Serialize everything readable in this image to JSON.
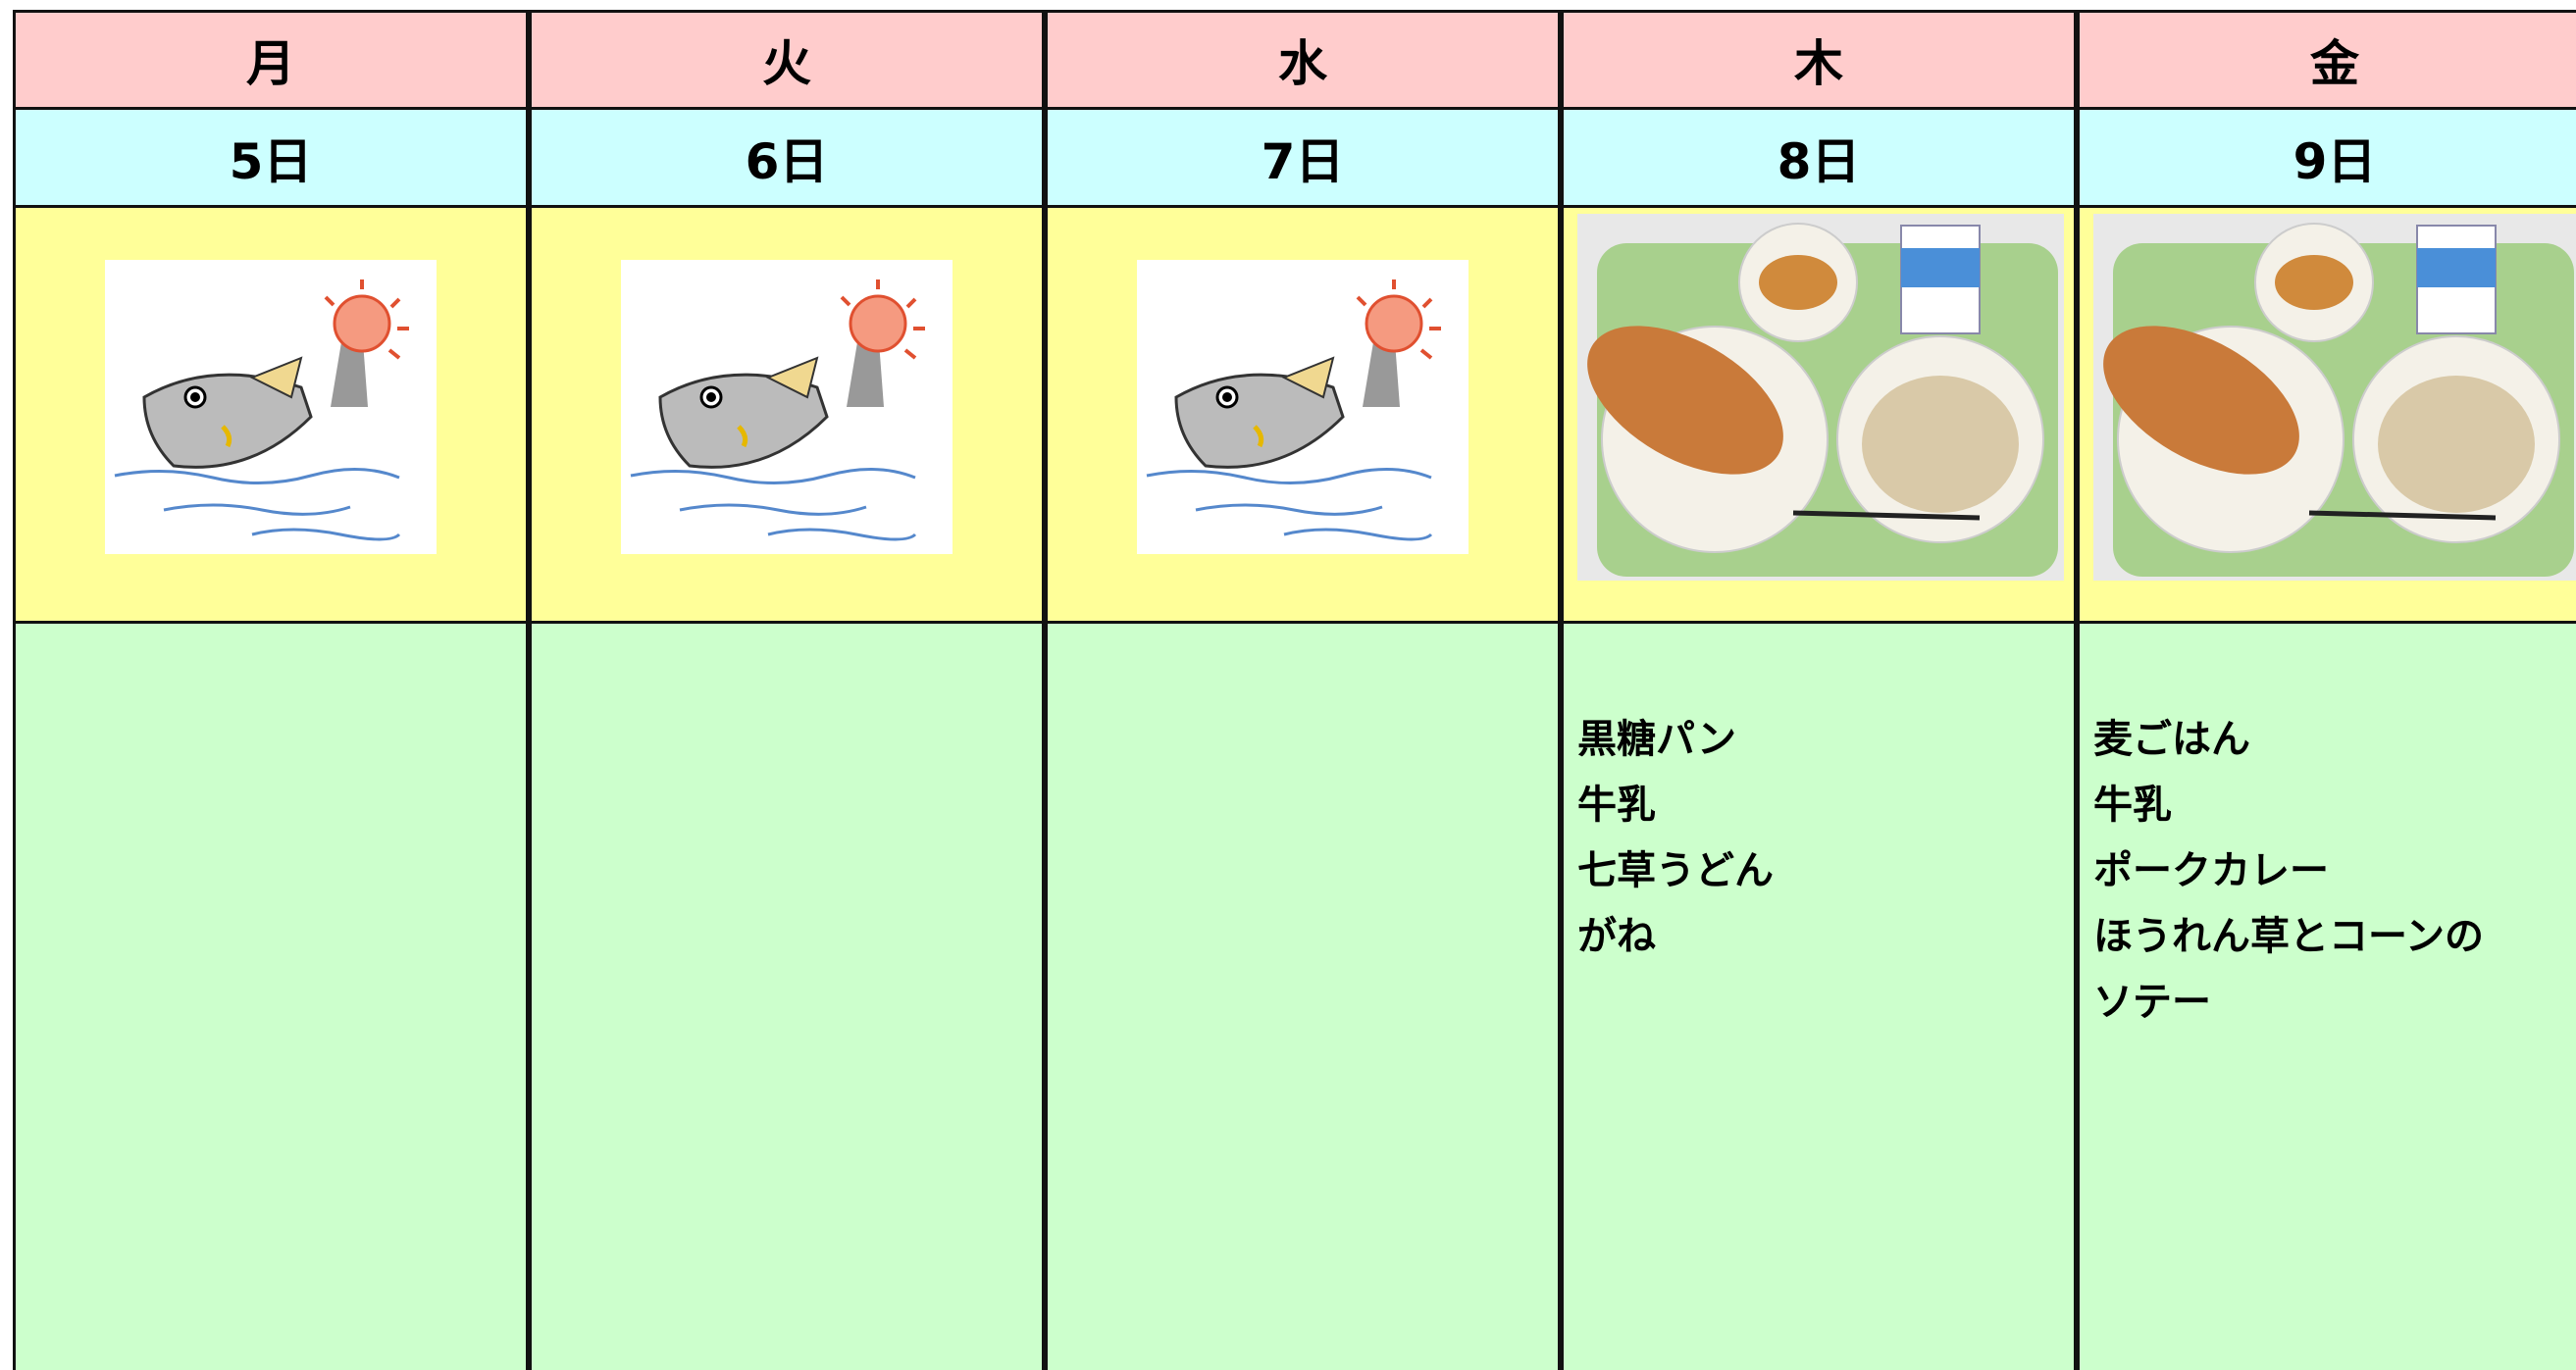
{
  "days": [
    {
      "weekday": "月",
      "date": "5日",
      "menu": []
    },
    {
      "weekday": "火",
      "date": "6日",
      "menu": []
    },
    {
      "weekday": "水",
      "date": "7日",
      "menu": []
    },
    {
      "weekday": "木",
      "date": "8日",
      "menu": [
        "黒糖パン",
        "牛乳",
        "七草うどん",
        "がね"
      ]
    },
    {
      "weekday": "金",
      "date": "9日",
      "menu": [
        "麦ごはん",
        "牛乳",
        "ポークカレー",
        "ほうれん草とコーンの",
        "ソテー"
      ]
    }
  ]
}
